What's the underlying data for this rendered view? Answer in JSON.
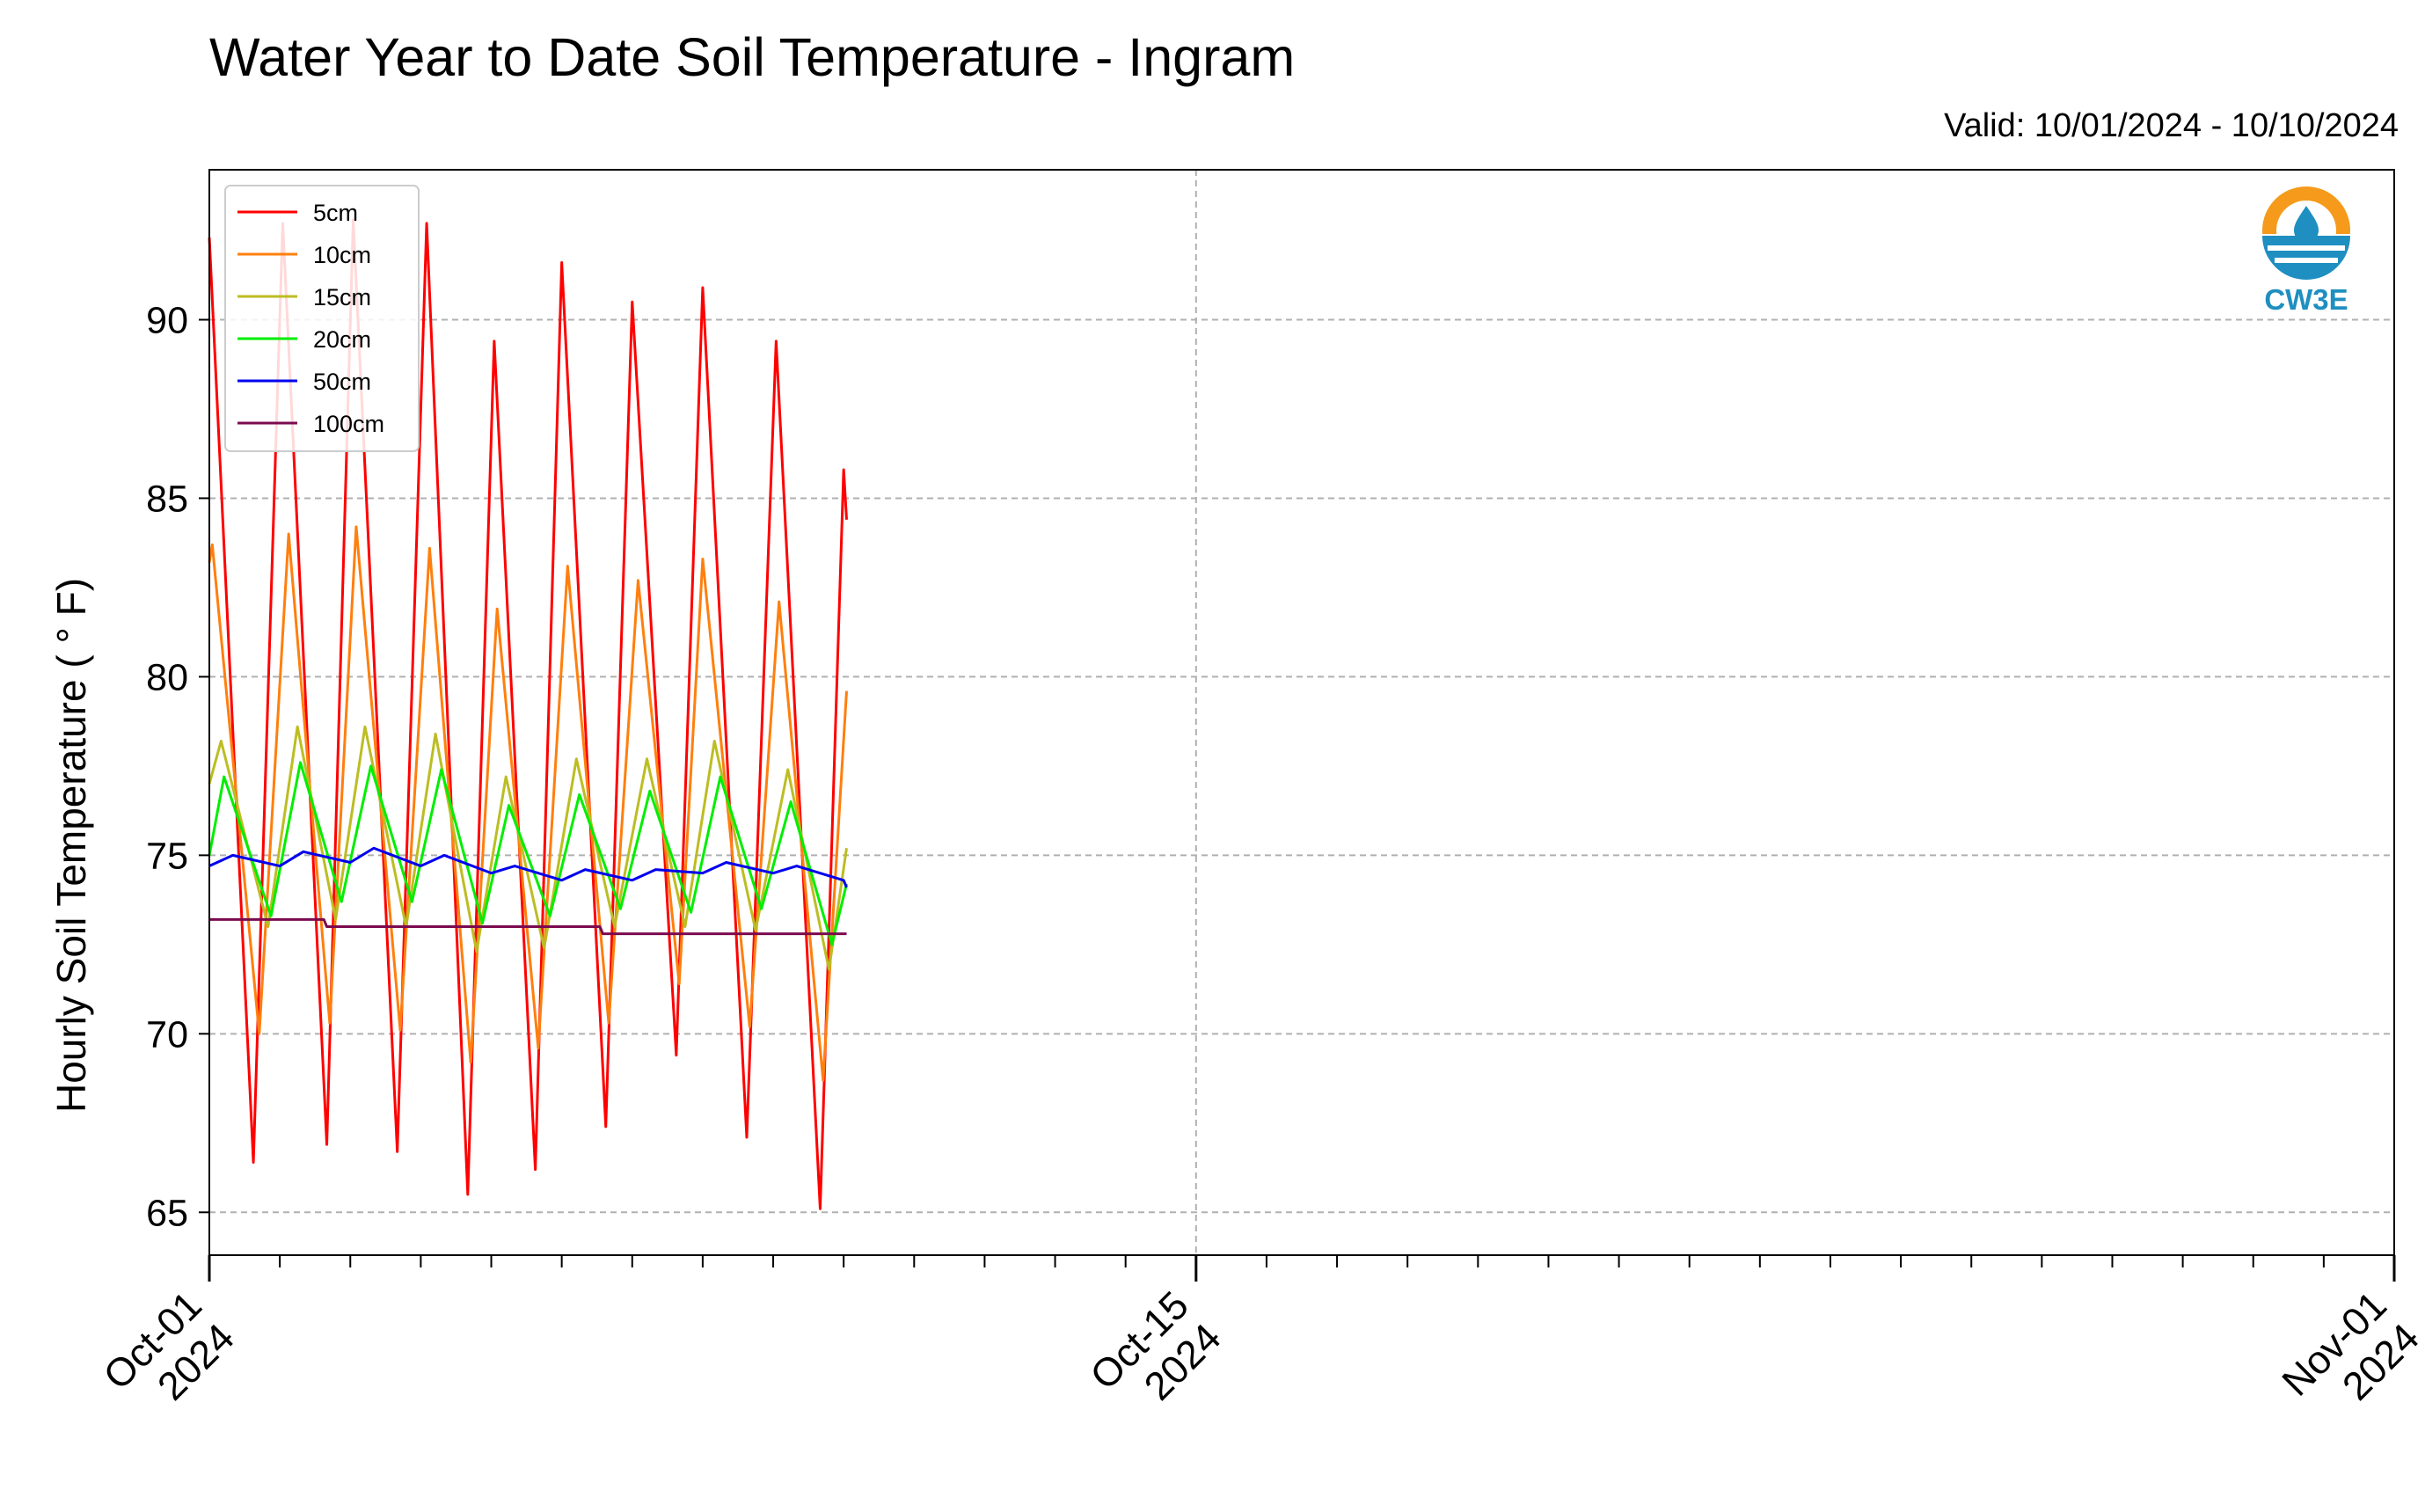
{
  "header": {
    "title": "Water Year to Date Soil Temperature - Ingram",
    "valid_range": "Valid: 10/01/2024 - 10/10/2024"
  },
  "logo": {
    "text": "CW3E",
    "icon": "water-drop-sun-icon",
    "colors": {
      "orange": "#f59a1b",
      "blue": "#1e8fc0"
    }
  },
  "chart_data": {
    "type": "line",
    "title": "Water Year to Date Soil Temperature - Ingram",
    "xlabel": "",
    "ylabel": "Hourly Soil Temperature ( ° F)",
    "x_axis": {
      "type": "date",
      "range": [
        "2024-10-01",
        "2024-11-01"
      ],
      "major_ticks": [
        {
          "date": "2024-10-01",
          "line1": "Oct-01",
          "line2": "2024"
        },
        {
          "date": "2024-10-15",
          "line1": "Oct-15",
          "line2": "2024"
        },
        {
          "date": "2024-11-01",
          "line1": "Nov-01",
          "line2": "2024"
        }
      ],
      "minor_ticks": "daily"
    },
    "ylim": [
      63.8,
      94.2
    ],
    "yticks": [
      65,
      70,
      75,
      80,
      85,
      90
    ],
    "grid": true,
    "legend_position": "upper-left",
    "data_start": "2024-10-01T00:00",
    "data_end": "2024-10-10T01:00",
    "series": [
      {
        "name": "5cm",
        "color": "#ff0000",
        "points": [
          [
            "2024-10-01T00:00",
            92.3
          ],
          [
            "2024-10-01T15:00",
            66.4
          ],
          [
            "2024-10-02T01:00",
            92.7
          ],
          [
            "2024-10-02T16:00",
            66.9
          ],
          [
            "2024-10-03T01:00",
            92.8
          ],
          [
            "2024-10-03T16:00",
            66.7
          ],
          [
            "2024-10-04T02:00",
            92.7
          ],
          [
            "2024-10-04T16:00",
            65.5
          ],
          [
            "2024-10-05T01:00",
            89.4
          ],
          [
            "2024-10-05T15:00",
            66.2
          ],
          [
            "2024-10-06T00:00",
            91.6
          ],
          [
            "2024-10-06T15:00",
            67.4
          ],
          [
            "2024-10-07T00:00",
            90.5
          ],
          [
            "2024-10-07T15:00",
            69.4
          ],
          [
            "2024-10-08T00:00",
            90.9
          ],
          [
            "2024-10-08T15:00",
            67.1
          ],
          [
            "2024-10-09T01:00",
            89.4
          ],
          [
            "2024-10-09T16:00",
            65.1
          ],
          [
            "2024-10-10T00:00",
            85.8
          ],
          [
            "2024-10-10T01:00",
            84.4
          ]
        ]
      },
      {
        "name": "10cm",
        "color": "#ff7f0e",
        "points": [
          [
            "2024-10-01T00:00",
            83.2
          ],
          [
            "2024-10-01T01:00",
            83.7
          ],
          [
            "2024-10-01T17:00",
            70.0
          ],
          [
            "2024-10-02T03:00",
            84.0
          ],
          [
            "2024-10-02T17:00",
            70.3
          ],
          [
            "2024-10-03T02:00",
            84.2
          ],
          [
            "2024-10-03T17:00",
            70.1
          ],
          [
            "2024-10-04T03:00",
            83.6
          ],
          [
            "2024-10-04T17:00",
            69.2
          ],
          [
            "2024-10-05T02:00",
            81.9
          ],
          [
            "2024-10-05T16:00",
            69.6
          ],
          [
            "2024-10-06T02:00",
            83.1
          ],
          [
            "2024-10-06T16:00",
            70.3
          ],
          [
            "2024-10-07T02:00",
            82.7
          ],
          [
            "2024-10-07T16:00",
            71.4
          ],
          [
            "2024-10-08T00:00",
            83.3
          ],
          [
            "2024-10-08T16:00",
            70.2
          ],
          [
            "2024-10-09T02:00",
            82.1
          ],
          [
            "2024-10-09T17:00",
            68.7
          ],
          [
            "2024-10-10T01:00",
            79.6
          ]
        ]
      },
      {
        "name": "15cm",
        "color": "#bcbd22",
        "points": [
          [
            "2024-10-01T00:00",
            77.0
          ],
          [
            "2024-10-01T04:00",
            78.2
          ],
          [
            "2024-10-01T20:00",
            73.0
          ],
          [
            "2024-10-02T06:00",
            78.6
          ],
          [
            "2024-10-02T19:00",
            73.2
          ],
          [
            "2024-10-03T05:00",
            78.6
          ],
          [
            "2024-10-03T19:00",
            73.0
          ],
          [
            "2024-10-04T05:00",
            78.4
          ],
          [
            "2024-10-04T19:00",
            72.3
          ],
          [
            "2024-10-05T05:00",
            77.2
          ],
          [
            "2024-10-05T18:00",
            72.4
          ],
          [
            "2024-10-06T05:00",
            77.7
          ],
          [
            "2024-10-06T18:00",
            73.0
          ],
          [
            "2024-10-07T05:00",
            77.7
          ],
          [
            "2024-10-07T18:00",
            73.0
          ],
          [
            "2024-10-08T04:00",
            78.2
          ],
          [
            "2024-10-08T18:00",
            72.9
          ],
          [
            "2024-10-09T05:00",
            77.4
          ],
          [
            "2024-10-09T19:00",
            71.8
          ],
          [
            "2024-10-10T01:00",
            75.2
          ]
        ]
      },
      {
        "name": "20cm",
        "color": "#00ee00",
        "points": [
          [
            "2024-10-01T00:00",
            75.0
          ],
          [
            "2024-10-01T05:00",
            77.2
          ],
          [
            "2024-10-01T21:00",
            73.3
          ],
          [
            "2024-10-02T07:00",
            77.6
          ],
          [
            "2024-10-02T21:00",
            73.7
          ],
          [
            "2024-10-03T07:00",
            77.5
          ],
          [
            "2024-10-03T21:00",
            73.7
          ],
          [
            "2024-10-04T07:00",
            77.4
          ],
          [
            "2024-10-04T21:00",
            73.1
          ],
          [
            "2024-10-05T06:00",
            76.4
          ],
          [
            "2024-10-05T20:00",
            73.3
          ],
          [
            "2024-10-06T06:00",
            76.7
          ],
          [
            "2024-10-06T20:00",
            73.5
          ],
          [
            "2024-10-07T06:00",
            76.8
          ],
          [
            "2024-10-07T20:00",
            73.4
          ],
          [
            "2024-10-08T06:00",
            77.2
          ],
          [
            "2024-10-08T20:00",
            73.5
          ],
          [
            "2024-10-09T06:00",
            76.5
          ],
          [
            "2024-10-09T20:00",
            72.5
          ],
          [
            "2024-10-10T01:00",
            74.2
          ]
        ]
      },
      {
        "name": "50cm",
        "color": "#0000ee",
        "points": [
          [
            "2024-10-01T00:00",
            74.7
          ],
          [
            "2024-10-01T08:00",
            75.0
          ],
          [
            "2024-10-02T00:00",
            74.7
          ],
          [
            "2024-10-02T08:00",
            75.1
          ],
          [
            "2024-10-03T00:00",
            74.8
          ],
          [
            "2024-10-03T08:00",
            75.2
          ],
          [
            "2024-10-04T00:00",
            74.7
          ],
          [
            "2024-10-04T08:00",
            75.0
          ],
          [
            "2024-10-05T00:00",
            74.5
          ],
          [
            "2024-10-05T08:00",
            74.7
          ],
          [
            "2024-10-06T00:00",
            74.3
          ],
          [
            "2024-10-06T08:00",
            74.6
          ],
          [
            "2024-10-07T00:00",
            74.3
          ],
          [
            "2024-10-07T08:00",
            74.6
          ],
          [
            "2024-10-08T00:00",
            74.5
          ],
          [
            "2024-10-08T08:00",
            74.8
          ],
          [
            "2024-10-09T00:00",
            74.5
          ],
          [
            "2024-10-09T08:00",
            74.7
          ],
          [
            "2024-10-10T00:00",
            74.3
          ],
          [
            "2024-10-10T01:00",
            74.1
          ]
        ]
      },
      {
        "name": "100cm",
        "color": "#7b0a4f",
        "points": [
          [
            "2024-10-01T00:00",
            73.2
          ],
          [
            "2024-10-02T15:00",
            73.2
          ],
          [
            "2024-10-02T16:00",
            73.0
          ],
          [
            "2024-10-06T13:00",
            73.0
          ],
          [
            "2024-10-06T14:00",
            72.8
          ],
          [
            "2024-10-10T01:00",
            72.8
          ]
        ]
      }
    ]
  }
}
